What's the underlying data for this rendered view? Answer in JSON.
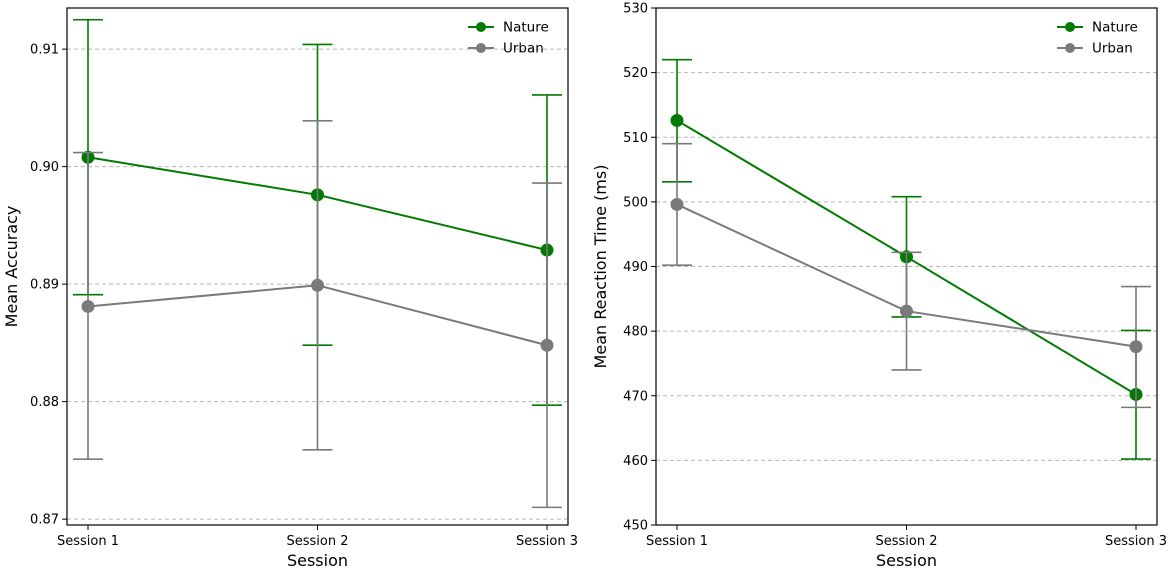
{
  "chart_data": [
    {
      "type": "line",
      "xlabel": "Session",
      "ylabel": "Mean Accuracy",
      "categories": [
        "Session 1",
        "Session 2",
        "Session 3"
      ],
      "ylim": [
        0.8695,
        0.9135
      ],
      "yticks": [
        0.87,
        0.88,
        0.89,
        0.9,
        0.91
      ],
      "ytick_labels": [
        "0.87",
        "0.88",
        "0.89",
        "0.90",
        "0.91"
      ],
      "grid": "y-dashed",
      "legend": "top-right",
      "series": [
        {
          "name": "Nature",
          "color": "#007a00",
          "values": [
            0.9008,
            0.8976,
            0.8929
          ],
          "err_low": [
            0.8891,
            0.8848,
            0.8797
          ],
          "err_high": [
            0.9125,
            0.9104,
            0.9061
          ]
        },
        {
          "name": "Urban",
          "color": "#7a7a7a",
          "values": [
            0.8881,
            0.8899,
            0.8848
          ],
          "err_low": [
            0.8751,
            0.8759,
            0.871
          ],
          "err_high": [
            0.9012,
            0.9039,
            0.8986
          ]
        }
      ]
    },
    {
      "type": "line",
      "xlabel": "Session",
      "ylabel": "Mean Reaction Time (ms)",
      "categories": [
        "Session 1",
        "Session 2",
        "Session 3"
      ],
      "ylim": [
        450,
        530
      ],
      "yticks": [
        450,
        460,
        470,
        480,
        490,
        500,
        510,
        520,
        530
      ],
      "ytick_labels": [
        "450",
        "460",
        "470",
        "480",
        "490",
        "500",
        "510",
        "520",
        "530"
      ],
      "grid": "y-dashed",
      "legend": "top-right",
      "series": [
        {
          "name": "Nature",
          "color": "#007a00",
          "values": [
            512.6,
            491.5,
            470.2
          ],
          "err_low": [
            503.1,
            482.2,
            460.2
          ],
          "err_high": [
            522.0,
            500.8,
            480.1
          ]
        },
        {
          "name": "Urban",
          "color": "#7a7a7a",
          "values": [
            499.6,
            483.1,
            477.6
          ],
          "err_low": [
            490.2,
            474.0,
            468.2
          ],
          "err_high": [
            509.0,
            492.2,
            486.9
          ]
        }
      ]
    }
  ]
}
